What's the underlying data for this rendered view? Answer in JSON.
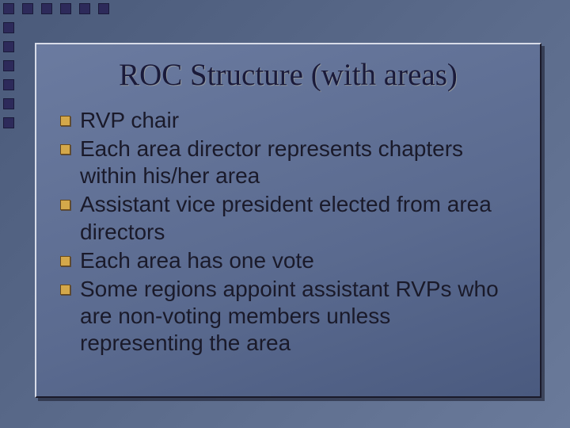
{
  "slide": {
    "title": "ROC Structure (with areas)",
    "bullets": [
      "RVP chair",
      "Each area director represents chapters within his/her area",
      "Assistant vice president elected from area directors",
      "Each area has one vote",
      "Some regions appoint assistant RVPs who are non-voting members unless representing the area"
    ]
  },
  "style": {
    "background_gradient": [
      "#4a5a7a",
      "#5a6a8a",
      "#6a7a9a"
    ],
    "content_gradient": [
      "#6b7ba0",
      "#5a6a8f",
      "#4a5a7f"
    ],
    "border_square_color": "#2d2a5a",
    "border_square_size": 14,
    "bullet_marker_color": "#d4a84a",
    "title_font": "Times New Roman",
    "title_fontsize": 39,
    "title_color": "#1a1a3a",
    "body_font": "Arial",
    "body_fontsize": 28,
    "body_color": "#1a1a2a",
    "top_square_count": 6,
    "left_square_count": 7
  }
}
